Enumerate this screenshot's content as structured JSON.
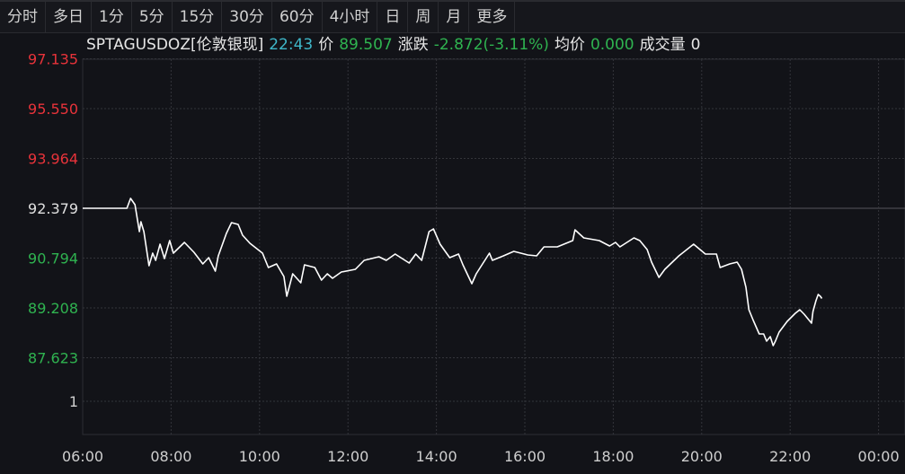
{
  "toolbar": {
    "tabs": [
      "分时",
      "多日",
      "1分",
      "5分",
      "15分",
      "30分",
      "60分",
      "4小时",
      "日",
      "周",
      "月",
      "更多"
    ]
  },
  "info": {
    "symbol": "SPTAGUSDOZ[伦敦银现]",
    "time": "22:43",
    "price_label": "价",
    "price": "89.507",
    "change_label": "涨跌",
    "change": "-2.872(-3.11%)",
    "avg_label": "均价",
    "avg": "0.000",
    "volume_label": "成交量",
    "volume": "0"
  },
  "colors": {
    "up": "#e8333a",
    "down": "#2fb350",
    "neutral": "#e0e0e0",
    "line": "#ffffff",
    "background": "#121318"
  },
  "chart_data": {
    "type": "line",
    "prev_close": 92.379,
    "y_ticks": [
      "97.135",
      "95.550",
      "93.964",
      "92.379",
      "90.794",
      "89.208",
      "87.623"
    ],
    "volume_tick": "1",
    "x_ticks": [
      "06:00",
      "08:00",
      "10:00",
      "12:00",
      "14:00",
      "16:00",
      "18:00",
      "20:00",
      "22:00",
      "00:00"
    ],
    "ylim": [
      86.0,
      97.135
    ],
    "grid": true,
    "series": [
      {
        "points": [
          [
            "06:00",
            92.379
          ],
          [
            "07:00",
            92.379
          ],
          [
            "07:05",
            92.693
          ],
          [
            "07:11",
            92.493
          ],
          [
            "07:17",
            91.636
          ],
          [
            "07:19",
            91.95
          ],
          [
            "07:23",
            91.636
          ],
          [
            "07:30",
            90.551
          ],
          [
            "07:35",
            90.951
          ],
          [
            "07:39",
            90.722
          ],
          [
            "07:45",
            91.236
          ],
          [
            "07:51",
            90.779
          ],
          [
            "07:58",
            91.35
          ],
          [
            "08:03",
            90.951
          ],
          [
            "08:18",
            91.293
          ],
          [
            "08:31",
            90.979
          ],
          [
            "08:43",
            90.608
          ],
          [
            "08:51",
            90.808
          ],
          [
            "09:00",
            90.379
          ],
          [
            "09:04",
            90.865
          ],
          [
            "09:15",
            91.579
          ],
          [
            "09:22",
            91.922
          ],
          [
            "09:31",
            91.865
          ],
          [
            "09:37",
            91.522
          ],
          [
            "09:47",
            91.265
          ],
          [
            "10:04",
            90.951
          ],
          [
            "10:12",
            90.493
          ],
          [
            "10:23",
            90.608
          ],
          [
            "10:33",
            90.208
          ],
          [
            "10:37",
            89.579
          ],
          [
            "10:45",
            90.293
          ],
          [
            "10:56",
            90.008
          ],
          [
            "11:01",
            90.579
          ],
          [
            "11:15",
            90.493
          ],
          [
            "11:24",
            90.093
          ],
          [
            "11:32",
            90.293
          ],
          [
            "11:39",
            90.15
          ],
          [
            "11:51",
            90.351
          ],
          [
            "12:10",
            90.436
          ],
          [
            "12:22",
            90.722
          ],
          [
            "12:42",
            90.836
          ],
          [
            "12:52",
            90.722
          ],
          [
            "13:04",
            90.922
          ],
          [
            "13:23",
            90.636
          ],
          [
            "13:32",
            90.922
          ],
          [
            "13:40",
            90.722
          ],
          [
            "13:50",
            91.636
          ],
          [
            "13:56",
            91.722
          ],
          [
            "14:05",
            91.236
          ],
          [
            "14:18",
            90.808
          ],
          [
            "14:30",
            90.922
          ],
          [
            "14:36",
            90.579
          ],
          [
            "14:48",
            89.979
          ],
          [
            "14:54",
            90.293
          ],
          [
            "15:12",
            90.951
          ],
          [
            "15:16",
            90.722
          ],
          [
            "15:31",
            90.865
          ],
          [
            "15:45",
            91.008
          ],
          [
            "16:04",
            90.893
          ],
          [
            "16:16",
            90.865
          ],
          [
            "16:26",
            91.15
          ],
          [
            "16:44",
            91.15
          ],
          [
            "17:05",
            91.35
          ],
          [
            "17:08",
            91.693
          ],
          [
            "17:20",
            91.436
          ],
          [
            "17:41",
            91.35
          ],
          [
            "17:55",
            91.179
          ],
          [
            "18:03",
            91.293
          ],
          [
            "18:09",
            91.15
          ],
          [
            "18:28",
            91.436
          ],
          [
            "18:36",
            91.35
          ],
          [
            "18:46",
            91.065
          ],
          [
            "18:52",
            90.665
          ],
          [
            "19:02",
            90.179
          ],
          [
            "19:10",
            90.436
          ],
          [
            "19:29",
            90.865
          ],
          [
            "19:49",
            91.236
          ],
          [
            "20:05",
            90.922
          ],
          [
            "20:20",
            90.922
          ],
          [
            "20:25",
            90.493
          ],
          [
            "20:38",
            90.608
          ],
          [
            "20:48",
            90.665
          ],
          [
            "20:54",
            90.436
          ],
          [
            "21:00",
            89.865
          ],
          [
            "21:04",
            89.151
          ],
          [
            "21:10",
            88.808
          ],
          [
            "21:18",
            88.379
          ],
          [
            "21:24",
            88.379
          ],
          [
            "21:28",
            88.151
          ],
          [
            "21:33",
            88.293
          ],
          [
            "21:37",
            88.008
          ],
          [
            "21:40",
            88.151
          ],
          [
            "21:45",
            88.436
          ],
          [
            "21:56",
            88.779
          ],
          [
            "22:07",
            89.036
          ],
          [
            "22:13",
            89.151
          ],
          [
            "22:19",
            89.008
          ],
          [
            "22:29",
            88.722
          ],
          [
            "22:31",
            89.093
          ],
          [
            "22:35",
            89.436
          ],
          [
            "22:38",
            89.636
          ],
          [
            "22:41",
            89.579
          ],
          [
            "22:43",
            89.507
          ]
        ]
      }
    ]
  }
}
